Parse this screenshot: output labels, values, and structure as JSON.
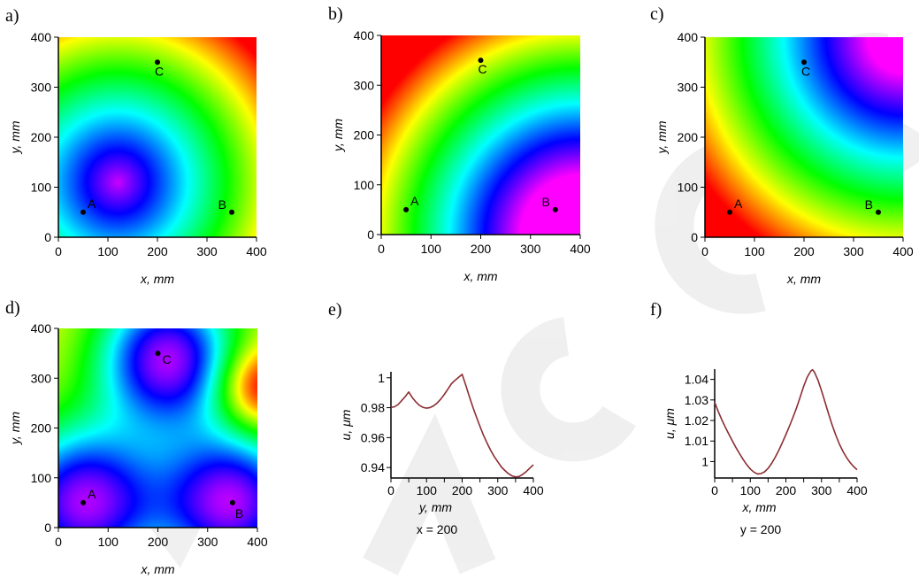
{
  "figure": {
    "watermark_color": "#e3e3e3"
  },
  "colors": {
    "curve": "#8b2d32",
    "point": "#000000",
    "axis": "#000000"
  },
  "chart_data": [
    {
      "id": "a",
      "panel_label": "a)",
      "type": "heatmap",
      "xlabel": "x, mm",
      "ylabel": "y, mm",
      "xlim": [
        0,
        400
      ],
      "ylim": [
        0,
        400
      ],
      "xticks": [
        0,
        100,
        200,
        300,
        400
      ],
      "yticks": [
        0,
        100,
        200,
        300,
        400
      ],
      "colormap": "rainbow magenta(low) to red(high)",
      "field": "radial minimum near (130,130); high near top-left, top-right, bottom-right corners",
      "points": [
        {
          "label": "A",
          "x": 50,
          "y": 50
        },
        {
          "label": "B",
          "x": 350,
          "y": 50
        },
        {
          "label": "C",
          "x": 200,
          "y": 350
        }
      ]
    },
    {
      "id": "b",
      "panel_label": "b)",
      "type": "heatmap",
      "xlabel": "x, mm",
      "ylabel": "y, mm",
      "xlim": [
        0,
        400
      ],
      "ylim": [
        0,
        400
      ],
      "xticks": [
        0,
        100,
        200,
        300,
        400
      ],
      "yticks": [
        0,
        100,
        200,
        300,
        400
      ],
      "colormap": "rainbow magenta(low) to red(high)",
      "field": "low at bottom-right corner, high at top-left corner, diagonal bands",
      "points": [
        {
          "label": "A",
          "x": 50,
          "y": 50
        },
        {
          "label": "B",
          "x": 350,
          "y": 50
        },
        {
          "label": "C",
          "x": 200,
          "y": 350
        }
      ]
    },
    {
      "id": "c",
      "panel_label": "c)",
      "type": "heatmap",
      "xlabel": "x, mm",
      "ylabel": "y, mm",
      "xlim": [
        0,
        400
      ],
      "ylim": [
        0,
        400
      ],
      "xticks": [
        0,
        100,
        200,
        300,
        400
      ],
      "yticks": [
        0,
        100,
        200,
        300,
        400
      ],
      "colormap": "rainbow magenta(low) to red(high)",
      "field": "low at top-right, high at bottom-right corner and bottom-left",
      "points": [
        {
          "label": "A",
          "x": 50,
          "y": 50
        },
        {
          "label": "B",
          "x": 350,
          "y": 50
        },
        {
          "label": "C",
          "x": 200,
          "y": 350
        }
      ]
    },
    {
      "id": "d",
      "panel_label": "d)",
      "type": "heatmap",
      "xlabel": "x, mm",
      "ylabel": "y, mm",
      "xlim": [
        0,
        400
      ],
      "ylim": [
        0,
        400
      ],
      "xticks": [
        0,
        100,
        200,
        300,
        400
      ],
      "yticks": [
        0,
        100,
        200,
        300,
        400
      ],
      "colormap": "rainbow magenta(low) to red(high)",
      "field": "three minima near A, B, C; high near right edge around y=280",
      "points": [
        {
          "label": "A",
          "x": 50,
          "y": 50
        },
        {
          "label": "B",
          "x": 350,
          "y": 50
        },
        {
          "label": "C",
          "x": 200,
          "y": 350
        }
      ]
    },
    {
      "id": "e",
      "panel_label": "e)",
      "type": "line",
      "xlabel": "y, mm",
      "ylabel": "u, μm",
      "xlim": [
        0,
        400
      ],
      "ylim": [
        0.933,
        1.004
      ],
      "xticks": [
        0,
        50,
        100,
        150,
        200,
        250,
        300,
        350,
        400
      ],
      "yticks": [
        0.94,
        0.96,
        0.98,
        1
      ],
      "ytick_labels": [
        "0.94",
        "0.96",
        "0.98",
        "1"
      ],
      "note": "x = 200",
      "series": [
        {
          "x": [
            0,
            10,
            20,
            30,
            40,
            50,
            60,
            70,
            80,
            90,
            100,
            110,
            120,
            130,
            140,
            150,
            160,
            170,
            180,
            190,
            200,
            210,
            220,
            230,
            240,
            250,
            260,
            270,
            280,
            290,
            300,
            310,
            320,
            330,
            340,
            350,
            360,
            370,
            380,
            390,
            400
          ],
          "y": [
            0.9801,
            0.9806,
            0.9821,
            0.9847,
            0.9874,
            0.9905,
            0.9868,
            0.9838,
            0.9816,
            0.9802,
            0.9797,
            0.9801,
            0.9813,
            0.9832,
            0.9858,
            0.9889,
            0.9924,
            0.996,
            0.9983,
            1.0003,
            1.0023,
            0.9952,
            0.9877,
            0.9804,
            0.9738,
            0.9676,
            0.9616,
            0.9563,
            0.9516,
            0.9474,
            0.9438,
            0.9404,
            0.938,
            0.9359,
            0.9344,
            0.9337,
            0.934,
            0.9354,
            0.9373,
            0.9396,
            0.9418
          ]
        }
      ]
    },
    {
      "id": "f",
      "panel_label": "f)",
      "type": "line",
      "xlabel": "x, mm",
      "ylabel": "u, μm",
      "xlim": [
        0,
        400
      ],
      "ylim": [
        0.992,
        1.045
      ],
      "xticks": [
        0,
        50,
        100,
        150,
        200,
        250,
        300,
        350,
        400
      ],
      "yticks": [
        1,
        1.01,
        1.02,
        1.03,
        1.04
      ],
      "ytick_labels": [
        "1",
        "1.01",
        "1.02",
        "1.03",
        "1.04"
      ],
      "note": "y = 200",
      "series": [
        {
          "x": [
            0,
            10,
            20,
            30,
            40,
            50,
            60,
            70,
            80,
            90,
            100,
            110,
            120,
            130,
            140,
            150,
            160,
            170,
            180,
            190,
            200,
            210,
            220,
            230,
            240,
            250,
            260,
            270,
            275,
            280,
            290,
            300,
            310,
            320,
            330,
            340,
            350,
            360,
            370,
            380,
            390,
            400
          ],
          "y": [
            1.0289,
            1.0244,
            1.0204,
            1.0167,
            1.0133,
            1.01,
            1.0068,
            1.0038,
            1.001,
            0.9985,
            0.9964,
            0.9949,
            0.994,
            0.9941,
            0.995,
            0.9967,
            0.9991,
            1.0021,
            1.0055,
            1.0092,
            1.0131,
            1.0172,
            1.0215,
            1.0262,
            1.0313,
            1.0366,
            1.0411,
            1.0441,
            1.0447,
            1.0436,
            1.0397,
            1.0345,
            1.0289,
            1.0232,
            1.0178,
            1.0129,
            1.0086,
            1.0051,
            1.0021,
            0.9996,
            0.9976,
            0.996
          ]
        }
      ]
    }
  ]
}
